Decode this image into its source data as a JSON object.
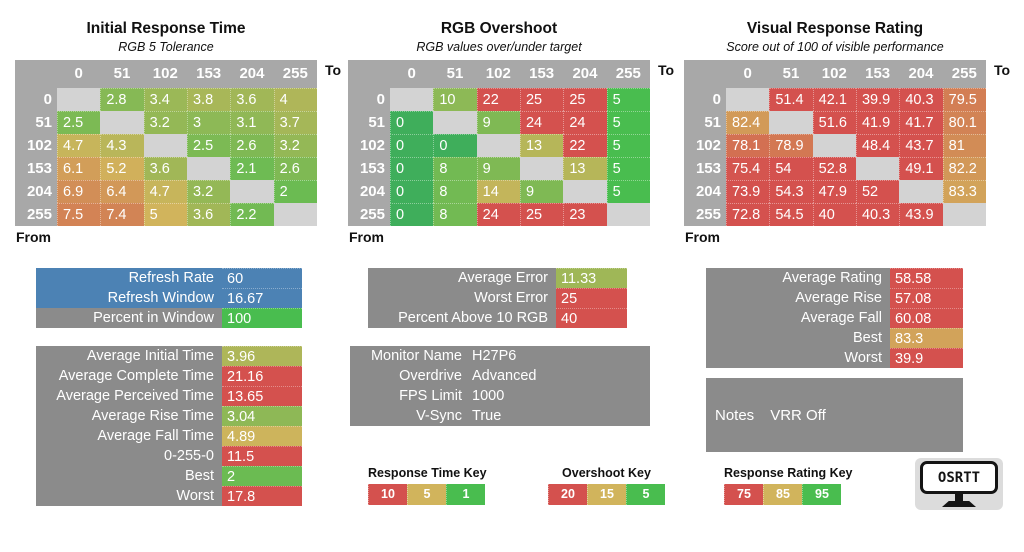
{
  "palette": {
    "green": "#49bd4f",
    "yellow": "#d1b45c",
    "red": "#d4514e",
    "deep_green": "#3fae5b",
    "blue": "#4c82b4",
    "header_gray": "#a8a8a8",
    "diagonal_gray": "#d3d3d3",
    "label_gray": "#8b8b8b",
    "logo_gray": "#dcdcdc"
  },
  "scales": {
    "time": {
      "stops": [
        1,
        5,
        10
      ],
      "stop_colors": [
        "green",
        "yellow",
        "red"
      ]
    },
    "overshoot": {
      "stops": [
        5,
        15,
        20
      ],
      "stop_colors": [
        "green",
        "yellow",
        "red"
      ],
      "zero_color": "deep_green"
    },
    "rating": {
      "stops": [
        75,
        85,
        95
      ],
      "stop_colors": [
        "red",
        "yellow",
        "green"
      ]
    }
  },
  "chart_data": [
    {
      "type": "heatmap",
      "title": "Initial Response Time",
      "subtitle": "RGB 5 Tolerance",
      "col_axis_label": "To",
      "row_axis_label": "From",
      "categories": [
        "0",
        "51",
        "102",
        "153",
        "204",
        "255"
      ],
      "scale": "time",
      "rows": [
        [
          null,
          2.8,
          3.4,
          3.8,
          3.6,
          4
        ],
        [
          2.5,
          null,
          3.2,
          3,
          3.1,
          3.7
        ],
        [
          4.7,
          4.3,
          null,
          2.5,
          2.6,
          3.2
        ],
        [
          6.1,
          5.2,
          3.6,
          null,
          2.1,
          2.6
        ],
        [
          6.9,
          6.4,
          4.7,
          3.2,
          null,
          2
        ],
        [
          7.5,
          7.4,
          5,
          3.6,
          2.2,
          null
        ]
      ]
    },
    {
      "type": "heatmap",
      "title": "RGB Overshoot",
      "subtitle": "RGB values over/under target",
      "col_axis_label": "To",
      "row_axis_label": "From",
      "categories": [
        "0",
        "51",
        "102",
        "153",
        "204",
        "255"
      ],
      "scale": "overshoot",
      "rows": [
        [
          null,
          10,
          22,
          25,
          25,
          5
        ],
        [
          0,
          null,
          9,
          24,
          24,
          5
        ],
        [
          0,
          0,
          null,
          13,
          22,
          5
        ],
        [
          0,
          8,
          9,
          null,
          13,
          5
        ],
        [
          0,
          8,
          14,
          9,
          null,
          5
        ],
        [
          0,
          8,
          24,
          25,
          23,
          null
        ]
      ]
    },
    {
      "type": "heatmap",
      "title": "Visual Response Rating",
      "subtitle": "Score out of 100 of visible performance",
      "col_axis_label": "To",
      "row_axis_label": "From",
      "categories": [
        "0",
        "51",
        "102",
        "153",
        "204",
        "255"
      ],
      "scale": "rating",
      "rows": [
        [
          null,
          51.4,
          42.1,
          39.9,
          40.3,
          79.5
        ],
        [
          82.4,
          null,
          51.6,
          41.9,
          41.7,
          80.1
        ],
        [
          78.1,
          78.9,
          null,
          48.4,
          43.7,
          81
        ],
        [
          75.4,
          54,
          52.8,
          null,
          49.1,
          82.2
        ],
        [
          73.9,
          54.3,
          47.9,
          52,
          null,
          83.3
        ],
        [
          72.8,
          54.5,
          40,
          40.3,
          43.9,
          null
        ]
      ]
    }
  ],
  "summary_boxes": [
    {
      "id": "refresh-info",
      "rows": [
        {
          "label": "Refresh Rate",
          "value": "60",
          "label_bg": "blue",
          "value_bg": "blue"
        },
        {
          "label": "Refresh Window",
          "value": "16.67",
          "label_bg": "blue",
          "value_bg": "blue"
        },
        {
          "label": "Percent in Window",
          "value": "100",
          "label_bg": "label_gray",
          "value_bg": "green"
        }
      ]
    },
    {
      "id": "time-summary",
      "rows": [
        {
          "label": "Average Initial Time",
          "value": 3.96,
          "scale": "time"
        },
        {
          "label": "Average Complete Time",
          "value": 21.16,
          "scale": "time"
        },
        {
          "label": "Average Perceived Time",
          "value": 13.65,
          "scale": "time"
        },
        {
          "label": "Average Rise Time",
          "value": 3.04,
          "scale": "time"
        },
        {
          "label": "Average Fall Time",
          "value": 4.89,
          "scale": "time"
        },
        {
          "label": "0-255-0",
          "value": 11.5,
          "scale": "time"
        },
        {
          "label": "Best",
          "value": 2,
          "scale": "time"
        },
        {
          "label": "Worst",
          "value": 17.8,
          "scale": "time"
        }
      ]
    },
    {
      "id": "overshoot-summary",
      "rows": [
        {
          "label": "Average Error",
          "value": 11.33,
          "scale": "overshoot"
        },
        {
          "label": "Worst Error",
          "value": 25,
          "scale": "overshoot"
        },
        {
          "label": "Percent Above 10 RGB",
          "value": 40,
          "scale": "overshoot"
        }
      ]
    },
    {
      "id": "monitor-info",
      "kind": "plain",
      "rows": [
        {
          "label": "Monitor Name",
          "value": "H27P6"
        },
        {
          "label": "Overdrive",
          "value": "Advanced"
        },
        {
          "label": "FPS Limit",
          "value": "1000"
        },
        {
          "label": "V-Sync",
          "value": "True"
        }
      ]
    },
    {
      "id": "rating-summary",
      "rows": [
        {
          "label": "Average Rating",
          "value": 58.58,
          "scale": "rating"
        },
        {
          "label": "Average Rise",
          "value": 57.08,
          "scale": "rating"
        },
        {
          "label": "Average Fall",
          "value": 60.08,
          "scale": "rating"
        },
        {
          "label": "Best",
          "value": 83.3,
          "scale": "rating"
        },
        {
          "label": "Worst",
          "value": 39.9,
          "scale": "rating"
        }
      ]
    },
    {
      "id": "notes",
      "kind": "notes",
      "rows": [
        {
          "label": "Notes",
          "value": "VRR Off"
        }
      ]
    }
  ],
  "keys": [
    {
      "title": "Response Time Key",
      "cells": [
        {
          "label": "10",
          "color": "red"
        },
        {
          "label": "5",
          "color": "yellow"
        },
        {
          "label": "1",
          "color": "green"
        }
      ]
    },
    {
      "title": "Overshoot Key",
      "cells": [
        {
          "label": "20",
          "color": "red"
        },
        {
          "label": "15",
          "color": "yellow"
        },
        {
          "label": "5",
          "color": "green"
        }
      ]
    },
    {
      "title": "Response Rating Key",
      "cells": [
        {
          "label": "75",
          "color": "red"
        },
        {
          "label": "85",
          "color": "yellow"
        },
        {
          "label": "95",
          "color": "green"
        }
      ]
    }
  ],
  "logo": {
    "text": "OSRTT"
  }
}
